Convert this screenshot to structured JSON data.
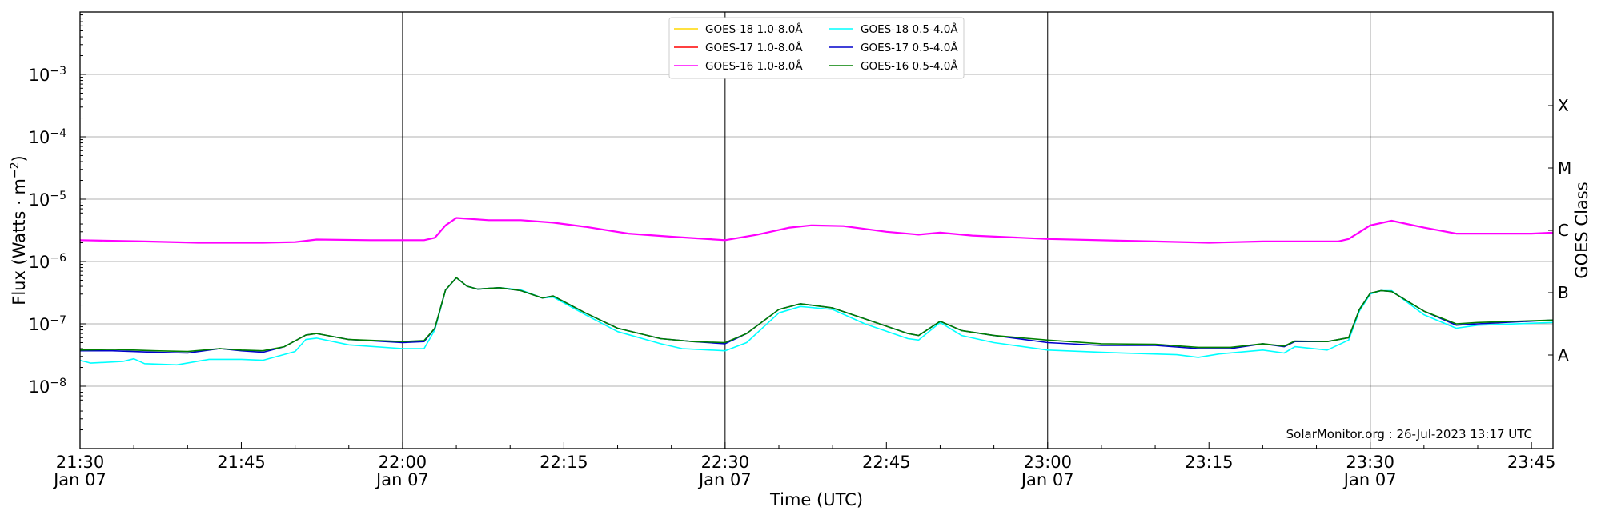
{
  "chart_data": {
    "type": "line",
    "title": "",
    "xlabel": "Time (UTC)",
    "ylabel": "Flux (Watts · m⁻²)",
    "ylabel_main": "Flux (Watts · m",
    "ylabel_sup": "−2",
    "ylabel_close": ")",
    "y2label": "GOES Class",
    "yscale": "log",
    "xlim": [
      "21:30",
      "23:47"
    ],
    "ylim": [
      1e-09,
      0.01
    ],
    "x_ticks": [
      {
        "time": "21:30",
        "label": "21:30",
        "sublabel": "Jan 07",
        "major": true
      },
      {
        "time": "21:45",
        "label": "21:45",
        "sublabel": "",
        "major": false
      },
      {
        "time": "22:00",
        "label": "22:00",
        "sublabel": "Jan 07",
        "major": true
      },
      {
        "time": "22:15",
        "label": "22:15",
        "sublabel": "",
        "major": false
      },
      {
        "time": "22:30",
        "label": "22:30",
        "sublabel": "Jan 07",
        "major": true
      },
      {
        "time": "22:45",
        "label": "22:45",
        "sublabel": "",
        "major": false
      },
      {
        "time": "23:00",
        "label": "23:00",
        "sublabel": "Jan 07",
        "major": true
      },
      {
        "time": "23:15",
        "label": "23:15",
        "sublabel": "",
        "major": false
      },
      {
        "time": "23:30",
        "label": "23:30",
        "sublabel": "Jan 07",
        "major": true
      },
      {
        "time": "23:45",
        "label": "23:45",
        "sublabel": "",
        "major": false
      }
    ],
    "y_ticks": [
      {
        "exp": -8,
        "base": "10",
        "sup": "−8"
      },
      {
        "exp": -7,
        "base": "10",
        "sup": "−7"
      },
      {
        "exp": -6,
        "base": "10",
        "sup": "−6"
      },
      {
        "exp": -5,
        "base": "10",
        "sup": "−5"
      },
      {
        "exp": -4,
        "base": "10",
        "sup": "−4"
      },
      {
        "exp": -3,
        "base": "10",
        "sup": "−3"
      }
    ],
    "goes_classes": [
      {
        "label": "A",
        "exp": -7.5
      },
      {
        "label": "B",
        "exp": -6.5
      },
      {
        "label": "C",
        "exp": -5.5
      },
      {
        "label": "M",
        "exp": -4.5
      },
      {
        "label": "X",
        "exp": -3.5
      }
    ],
    "grid": "horizontal at decades",
    "legend_position": "top-center",
    "credit": "SolarMonitor.org : 26-Jul-2023 13:17 UTC",
    "series": [
      {
        "name": "GOES-18 1.0-8.0Å",
        "color": "#ffd700",
        "values": []
      },
      {
        "name": "GOES-17 1.0-8.0Å",
        "color": "#ff0000",
        "values": []
      },
      {
        "name": "GOES-16 1.0-8.0Å",
        "color": "#ff00ff",
        "points": [
          [
            "21:30",
            2.2e-06
          ],
          [
            "21:36",
            2.1e-06
          ],
          [
            "21:41",
            2e-06
          ],
          [
            "21:47",
            2e-06
          ],
          [
            "21:50",
            2.05e-06
          ],
          [
            "21:52",
            2.25e-06
          ],
          [
            "21:57",
            2.2e-06
          ],
          [
            "22:02",
            2.2e-06
          ],
          [
            "22:03",
            2.4e-06
          ],
          [
            "22:04",
            3.8e-06
          ],
          [
            "22:05",
            5e-06
          ],
          [
            "22:08",
            4.6e-06
          ],
          [
            "22:11",
            4.6e-06
          ],
          [
            "22:14",
            4.2e-06
          ],
          [
            "22:17",
            3.6e-06
          ],
          [
            "22:21",
            2.8e-06
          ],
          [
            "22:25",
            2.5e-06
          ],
          [
            "22:30",
            2.2e-06
          ],
          [
            "22:33",
            2.7e-06
          ],
          [
            "22:36",
            3.5e-06
          ],
          [
            "22:38",
            3.8e-06
          ],
          [
            "22:41",
            3.7e-06
          ],
          [
            "22:45",
            3e-06
          ],
          [
            "22:48",
            2.7e-06
          ],
          [
            "22:50",
            2.9e-06
          ],
          [
            "22:53",
            2.6e-06
          ],
          [
            "23:00",
            2.3e-06
          ],
          [
            "23:10",
            2.1e-06
          ],
          [
            "23:15",
            2e-06
          ],
          [
            "23:20",
            2.1e-06
          ],
          [
            "23:27",
            2.1e-06
          ],
          [
            "23:28",
            2.3e-06
          ],
          [
            "23:30",
            3.8e-06
          ],
          [
            "23:32",
            4.5e-06
          ],
          [
            "23:35",
            3.5e-06
          ],
          [
            "23:38",
            2.8e-06
          ],
          [
            "23:45",
            2.8e-06
          ],
          [
            "23:47",
            2.9e-06
          ]
        ]
      },
      {
        "name": "GOES-18 0.5-4.0Å",
        "color": "#00ffff",
        "points": [
          [
            "21:30",
            2.6e-08
          ],
          [
            "21:31",
            2.35e-08
          ],
          [
            "21:34",
            2.5e-08
          ],
          [
            "21:35",
            2.75e-08
          ],
          [
            "21:36",
            2.3e-08
          ],
          [
            "21:39",
            2.2e-08
          ],
          [
            "21:42",
            2.7e-08
          ],
          [
            "21:45",
            2.7e-08
          ],
          [
            "21:47",
            2.6e-08
          ],
          [
            "21:50",
            3.6e-08
          ],
          [
            "21:51",
            5.6e-08
          ],
          [
            "21:52",
            5.9e-08
          ],
          [
            "21:55",
            4.6e-08
          ],
          [
            "22:00",
            4e-08
          ],
          [
            "22:02",
            4e-08
          ],
          [
            "22:03",
            8e-08
          ],
          [
            "22:04",
            3.5e-07
          ],
          [
            "22:05",
            5.5e-07
          ],
          [
            "22:06",
            4e-07
          ],
          [
            "22:07",
            3.6e-07
          ],
          [
            "22:09",
            3.8e-07
          ],
          [
            "22:11",
            3.5e-07
          ],
          [
            "22:13",
            2.6e-07
          ],
          [
            "22:14",
            2.7e-07
          ],
          [
            "22:17",
            1.4e-07
          ],
          [
            "22:20",
            7.5e-08
          ],
          [
            "22:24",
            4.8e-08
          ],
          [
            "22:26",
            4e-08
          ],
          [
            "22:30",
            3.7e-08
          ],
          [
            "22:32",
            5e-08
          ],
          [
            "22:35",
            1.5e-07
          ],
          [
            "22:37",
            1.9e-07
          ],
          [
            "22:40",
            1.7e-07
          ],
          [
            "22:43",
            1e-07
          ],
          [
            "22:47",
            5.8e-08
          ],
          [
            "22:48",
            5.5e-08
          ],
          [
            "22:50",
            1.05e-07
          ],
          [
            "22:52",
            6.5e-08
          ],
          [
            "22:55",
            5e-08
          ],
          [
            "23:00",
            3.8e-08
          ],
          [
            "23:05",
            3.5e-08
          ],
          [
            "23:12",
            3.2e-08
          ],
          [
            "23:14",
            2.9e-08
          ],
          [
            "23:16",
            3.3e-08
          ],
          [
            "23:20",
            3.8e-08
          ],
          [
            "23:22",
            3.4e-08
          ],
          [
            "23:23",
            4.3e-08
          ],
          [
            "23:26",
            3.8e-08
          ],
          [
            "23:28",
            5.5e-08
          ],
          [
            "23:29",
            1.6e-07
          ],
          [
            "23:30",
            3e-07
          ],
          [
            "23:31",
            3.4e-07
          ],
          [
            "23:32",
            3.4e-07
          ],
          [
            "23:35",
            1.4e-07
          ],
          [
            "23:38",
            8.5e-08
          ],
          [
            "23:40",
            9.5e-08
          ],
          [
            "23:47",
            1.05e-07
          ]
        ]
      },
      {
        "name": "GOES-17 0.5-4.0Å",
        "color": "#0000cc",
        "points": [
          [
            "21:30",
            3.7e-08
          ],
          [
            "21:33",
            3.7e-08
          ],
          [
            "21:37",
            3.5e-08
          ],
          [
            "21:40",
            3.4e-08
          ],
          [
            "21:43",
            4e-08
          ],
          [
            "21:45",
            3.7e-08
          ],
          [
            "21:47",
            3.5e-08
          ],
          [
            "21:49",
            4.3e-08
          ],
          [
            "21:51",
            6.6e-08
          ],
          [
            "21:52",
            7e-08
          ],
          [
            "21:55",
            5.6e-08
          ],
          [
            "22:00",
            5e-08
          ],
          [
            "22:02",
            5.2e-08
          ],
          [
            "22:03",
            8.5e-08
          ],
          [
            "22:04",
            3.5e-07
          ],
          [
            "22:05",
            5.5e-07
          ],
          [
            "22:06",
            4e-07
          ],
          [
            "22:07",
            3.6e-07
          ],
          [
            "22:09",
            3.8e-07
          ],
          [
            "22:11",
            3.4e-07
          ],
          [
            "22:13",
            2.6e-07
          ],
          [
            "22:14",
            2.8e-07
          ],
          [
            "22:17",
            1.5e-07
          ],
          [
            "22:20",
            8.5e-08
          ],
          [
            "22:24",
            5.8e-08
          ],
          [
            "22:27",
            5.2e-08
          ],
          [
            "22:30",
            4.8e-08
          ],
          [
            "22:32",
            7e-08
          ],
          [
            "22:35",
            1.7e-07
          ],
          [
            "22:37",
            2.1e-07
          ],
          [
            "22:40",
            1.8e-07
          ],
          [
            "22:43",
            1.2e-07
          ],
          [
            "22:47",
            7e-08
          ],
          [
            "22:48",
            6.5e-08
          ],
          [
            "22:50",
            1.1e-07
          ],
          [
            "22:52",
            7.8e-08
          ],
          [
            "22:55",
            6.5e-08
          ],
          [
            "23:00",
            5e-08
          ],
          [
            "23:05",
            4.5e-08
          ],
          [
            "23:10",
            4.5e-08
          ],
          [
            "23:14",
            4e-08
          ],
          [
            "23:17",
            4e-08
          ],
          [
            "23:20",
            4.8e-08
          ],
          [
            "23:22",
            4.3e-08
          ],
          [
            "23:23",
            5.2e-08
          ],
          [
            "23:26",
            5.2e-08
          ],
          [
            "23:28",
            6e-08
          ],
          [
            "23:29",
            1.7e-07
          ],
          [
            "23:30",
            3.1e-07
          ],
          [
            "23:31",
            3.4e-07
          ],
          [
            "23:32",
            3.3e-07
          ],
          [
            "23:35",
            1.6e-07
          ],
          [
            "23:38",
            9.5e-08
          ],
          [
            "23:40",
            1e-07
          ],
          [
            "23:47",
            1.15e-07
          ]
        ]
      },
      {
        "name": "GOES-16 0.5-4.0Å",
        "color": "#008000",
        "points": [
          [
            "21:30",
            3.8e-08
          ],
          [
            "21:33",
            3.9e-08
          ],
          [
            "21:37",
            3.7e-08
          ],
          [
            "21:40",
            3.6e-08
          ],
          [
            "21:43",
            4e-08
          ],
          [
            "21:45",
            3.8e-08
          ],
          [
            "21:47",
            3.7e-08
          ],
          [
            "21:49",
            4.3e-08
          ],
          [
            "21:51",
            6.6e-08
          ],
          [
            "21:52",
            7e-08
          ],
          [
            "21:55",
            5.6e-08
          ],
          [
            "22:00",
            5.2e-08
          ],
          [
            "22:02",
            5.4e-08
          ],
          [
            "22:03",
            8.5e-08
          ],
          [
            "22:04",
            3.5e-07
          ],
          [
            "22:05",
            5.5e-07
          ],
          [
            "22:06",
            4e-07
          ],
          [
            "22:07",
            3.6e-07
          ],
          [
            "22:09",
            3.8e-07
          ],
          [
            "22:11",
            3.4e-07
          ],
          [
            "22:13",
            2.6e-07
          ],
          [
            "22:14",
            2.8e-07
          ],
          [
            "22:17",
            1.5e-07
          ],
          [
            "22:20",
            8.5e-08
          ],
          [
            "22:24",
            5.8e-08
          ],
          [
            "22:27",
            5.2e-08
          ],
          [
            "22:30",
            5e-08
          ],
          [
            "22:32",
            7e-08
          ],
          [
            "22:35",
            1.7e-07
          ],
          [
            "22:37",
            2.1e-07
          ],
          [
            "22:40",
            1.8e-07
          ],
          [
            "22:43",
            1.2e-07
          ],
          [
            "22:47",
            7e-08
          ],
          [
            "22:48",
            6.5e-08
          ],
          [
            "22:50",
            1.1e-07
          ],
          [
            "22:52",
            7.8e-08
          ],
          [
            "22:55",
            6.5e-08
          ],
          [
            "23:00",
            5.5e-08
          ],
          [
            "23:05",
            4.8e-08
          ],
          [
            "23:10",
            4.7e-08
          ],
          [
            "23:14",
            4.2e-08
          ],
          [
            "23:17",
            4.2e-08
          ],
          [
            "23:20",
            4.8e-08
          ],
          [
            "23:22",
            4.4e-08
          ],
          [
            "23:23",
            5.3e-08
          ],
          [
            "23:26",
            5.2e-08
          ],
          [
            "23:28",
            6e-08
          ],
          [
            "23:29",
            1.7e-07
          ],
          [
            "23:30",
            3.1e-07
          ],
          [
            "23:31",
            3.4e-07
          ],
          [
            "23:32",
            3.3e-07
          ],
          [
            "23:35",
            1.6e-07
          ],
          [
            "23:38",
            1e-07
          ],
          [
            "23:40",
            1.05e-07
          ],
          [
            "23:47",
            1.15e-07
          ]
        ]
      }
    ]
  }
}
